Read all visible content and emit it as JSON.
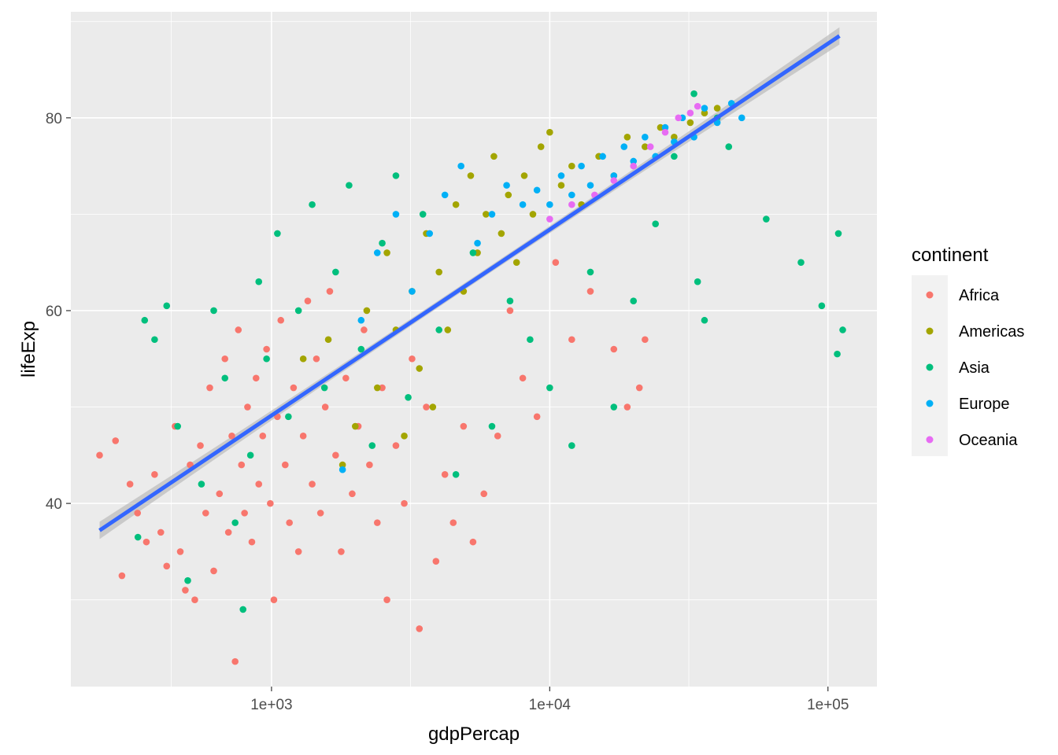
{
  "chart_data": {
    "type": "scatter",
    "x_label": "gdpPercap",
    "y_label": "lifeExp",
    "x_scale": "log10",
    "x_range": [
      190,
      150000
    ],
    "y_range": [
      21,
      91
    ],
    "x_ticks": [
      {
        "value": 1000,
        "label": "1e+03"
      },
      {
        "value": 10000,
        "label": "1e+04"
      },
      {
        "value": 100000,
        "label": "1e+05"
      }
    ],
    "y_ticks": [
      {
        "value": 40,
        "label": "40"
      },
      {
        "value": 60,
        "label": "60"
      },
      {
        "value": 80,
        "label": "80"
      }
    ],
    "grid": true,
    "background": "#ebebeb",
    "legend": {
      "title": "continent",
      "position": "right",
      "entries": [
        {
          "name": "Africa",
          "color": "#F8766D"
        },
        {
          "name": "Americas",
          "color": "#A3A500"
        },
        {
          "name": "Asia",
          "color": "#00BF7D"
        },
        {
          "name": "Europe",
          "color": "#00B0F6"
        },
        {
          "name": "Oceania",
          "color": "#E76BF3"
        }
      ]
    },
    "trend_line": {
      "method": "lm",
      "color": "#3366FF",
      "ribbon_color": "#b3b3b3",
      "x": [
        241,
        110000
      ],
      "y": [
        37.2,
        88.5
      ]
    },
    "series": [
      {
        "name": "Africa",
        "color": "#F8766D",
        "points": [
          [
            241,
            45.0
          ],
          [
            275,
            46.5
          ],
          [
            290,
            32.5
          ],
          [
            310,
            42.0
          ],
          [
            330,
            39.0
          ],
          [
            355,
            36.0
          ],
          [
            380,
            43.0
          ],
          [
            400,
            37.0
          ],
          [
            420,
            33.5
          ],
          [
            450,
            48.0
          ],
          [
            470,
            35.0
          ],
          [
            490,
            31.0
          ],
          [
            510,
            44.0
          ],
          [
            530,
            30.0
          ],
          [
            555,
            46.0
          ],
          [
            580,
            39.0
          ],
          [
            600,
            52.0
          ],
          [
            620,
            33.0
          ],
          [
            650,
            41.0
          ],
          [
            680,
            55.0
          ],
          [
            700,
            37.0
          ],
          [
            720,
            47.0
          ],
          [
            740,
            23.6
          ],
          [
            760,
            58.0
          ],
          [
            780,
            44.0
          ],
          [
            800,
            39.0
          ],
          [
            820,
            50.0
          ],
          [
            850,
            36.0
          ],
          [
            880,
            53.0
          ],
          [
            900,
            42.0
          ],
          [
            930,
            47.0
          ],
          [
            960,
            56.0
          ],
          [
            990,
            40.0
          ],
          [
            1020,
            30.0
          ],
          [
            1050,
            49.0
          ],
          [
            1080,
            59.0
          ],
          [
            1120,
            44.0
          ],
          [
            1160,
            38.0
          ],
          [
            1200,
            52.0
          ],
          [
            1250,
            35.0
          ],
          [
            1300,
            47.0
          ],
          [
            1350,
            61.0
          ],
          [
            1400,
            42.0
          ],
          [
            1450,
            55.0
          ],
          [
            1500,
            39.0
          ],
          [
            1560,
            50.0
          ],
          [
            1620,
            62.0
          ],
          [
            1700,
            45.0
          ],
          [
            1780,
            35.0
          ],
          [
            1850,
            53.0
          ],
          [
            1950,
            41.0
          ],
          [
            2050,
            48.0
          ],
          [
            2150,
            58.0
          ],
          [
            2250,
            44.0
          ],
          [
            2400,
            38.0
          ],
          [
            2500,
            52.0
          ],
          [
            2600,
            30.0
          ],
          [
            2800,
            46.0
          ],
          [
            3000,
            40.0
          ],
          [
            3200,
            55.0
          ],
          [
            3400,
            27.0
          ],
          [
            3600,
            50.0
          ],
          [
            3900,
            34.0
          ],
          [
            4200,
            43.0
          ],
          [
            4500,
            38.0
          ],
          [
            4900,
            48.0
          ],
          [
            5300,
            36.0
          ],
          [
            5800,
            41.0
          ],
          [
            6500,
            47.0
          ],
          [
            7200,
            60.0
          ],
          [
            8000,
            53.0
          ],
          [
            9000,
            49.0
          ],
          [
            10500,
            65.0
          ],
          [
            12000,
            57.0
          ],
          [
            14000,
            62.0
          ],
          [
            17000,
            56.0
          ],
          [
            19000,
            50.0
          ],
          [
            21000,
            52.0
          ],
          [
            22000,
            57.0
          ]
        ]
      },
      {
        "name": "Americas",
        "color": "#A3A500",
        "points": [
          [
            1300,
            55.0
          ],
          [
            1600,
            57.0
          ],
          [
            1800,
            44.0
          ],
          [
            2000,
            48.0
          ],
          [
            2200,
            60.0
          ],
          [
            2400,
            52.0
          ],
          [
            2600,
            66.0
          ],
          [
            2800,
            58.0
          ],
          [
            3000,
            47.0
          ],
          [
            3200,
            62.0
          ],
          [
            3400,
            54.0
          ],
          [
            3600,
            68.0
          ],
          [
            3800,
            50.0
          ],
          [
            4000,
            64.0
          ],
          [
            4300,
            58.0
          ],
          [
            4600,
            71.0
          ],
          [
            4900,
            62.0
          ],
          [
            5200,
            74.0
          ],
          [
            5500,
            66.0
          ],
          [
            5900,
            70.0
          ],
          [
            6300,
            76.0
          ],
          [
            6700,
            68.0
          ],
          [
            7100,
            72.0
          ],
          [
            7600,
            65.0
          ],
          [
            8100,
            74.0
          ],
          [
            8700,
            70.0
          ],
          [
            9300,
            77.0
          ],
          [
            10000,
            78.5
          ],
          [
            11000,
            73.0
          ],
          [
            12000,
            75.0
          ],
          [
            13000,
            71.0
          ],
          [
            15000,
            76.0
          ],
          [
            17000,
            74.0
          ],
          [
            19000,
            78.0
          ],
          [
            22000,
            77.0
          ],
          [
            25000,
            79.0
          ],
          [
            28000,
            78.0
          ],
          [
            32000,
            79.5
          ],
          [
            36000,
            80.5
          ],
          [
            40000,
            81.0
          ]
        ]
      },
      {
        "name": "Asia",
        "color": "#00BF7D",
        "points": [
          [
            331,
            36.5
          ],
          [
            350,
            59.0
          ],
          [
            380,
            57.0
          ],
          [
            420,
            60.5
          ],
          [
            460,
            48.0
          ],
          [
            500,
            32.0
          ],
          [
            560,
            42.0
          ],
          [
            620,
            60.0
          ],
          [
            680,
            53.0
          ],
          [
            740,
            38.0
          ],
          [
            790,
            29.0
          ],
          [
            840,
            45.0
          ],
          [
            900,
            63.0
          ],
          [
            960,
            55.0
          ],
          [
            1050,
            68.0
          ],
          [
            1150,
            49.0
          ],
          [
            1250,
            60.0
          ],
          [
            1400,
            71.0
          ],
          [
            1550,
            52.0
          ],
          [
            1700,
            64.0
          ],
          [
            1900,
            73.0
          ],
          [
            2100,
            56.0
          ],
          [
            2300,
            46.0
          ],
          [
            2500,
            67.0
          ],
          [
            2800,
            74.0
          ],
          [
            3100,
            51.0
          ],
          [
            3500,
            70.0
          ],
          [
            4000,
            58.0
          ],
          [
            4600,
            43.0
          ],
          [
            5300,
            66.0
          ],
          [
            6200,
            48.0
          ],
          [
            7200,
            61.0
          ],
          [
            8500,
            57.0
          ],
          [
            10000,
            52.0
          ],
          [
            12000,
            46.0
          ],
          [
            14000,
            64.0
          ],
          [
            17000,
            50.0
          ],
          [
            20000,
            61.0
          ],
          [
            24000,
            69.0
          ],
          [
            28000,
            76.0
          ],
          [
            33000,
            82.5
          ],
          [
            34000,
            63.0
          ],
          [
            36000,
            59.0
          ],
          [
            40000,
            80.0
          ],
          [
            44000,
            77.0
          ],
          [
            60000,
            69.5
          ],
          [
            80000,
            65.0
          ],
          [
            95000,
            60.5
          ],
          [
            108000,
            55.5
          ],
          [
            109000,
            68.0
          ],
          [
            113000,
            58.0
          ]
        ]
      },
      {
        "name": "Europe",
        "color": "#00B0F6",
        "points": [
          [
            1800,
            43.5
          ],
          [
            2100,
            59.0
          ],
          [
            2400,
            66.0
          ],
          [
            2800,
            70.0
          ],
          [
            3200,
            62.0
          ],
          [
            3700,
            68.0
          ],
          [
            4200,
            72.0
          ],
          [
            4800,
            75.0
          ],
          [
            5500,
            67.0
          ],
          [
            6200,
            70.0
          ],
          [
            7000,
            73.0
          ],
          [
            8000,
            71.0
          ],
          [
            9000,
            72.5
          ],
          [
            10000,
            71.0
          ],
          [
            11000,
            74.0
          ],
          [
            12000,
            72.0
          ],
          [
            13000,
            75.0
          ],
          [
            14000,
            73.0
          ],
          [
            15500,
            76.0
          ],
          [
            17000,
            74.0
          ],
          [
            18500,
            77.0
          ],
          [
            20000,
            75.5
          ],
          [
            22000,
            78.0
          ],
          [
            24000,
            76.0
          ],
          [
            26000,
            79.0
          ],
          [
            28000,
            77.5
          ],
          [
            30000,
            80.0
          ],
          [
            33000,
            78.0
          ],
          [
            36000,
            81.0
          ],
          [
            40000,
            79.5
          ],
          [
            45000,
            81.5
          ],
          [
            49000,
            80.0
          ]
        ]
      },
      {
        "name": "Oceania",
        "color": "#E76BF3",
        "points": [
          [
            10000,
            69.5
          ],
          [
            12000,
            71.0
          ],
          [
            14500,
            72.0
          ],
          [
            17000,
            73.5
          ],
          [
            20000,
            75.0
          ],
          [
            23000,
            77.0
          ],
          [
            26000,
            78.5
          ],
          [
            29000,
            80.0
          ],
          [
            32000,
            80.5
          ],
          [
            34000,
            81.2
          ]
        ]
      }
    ]
  }
}
